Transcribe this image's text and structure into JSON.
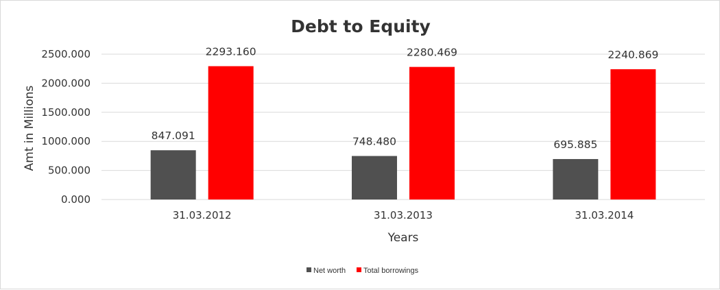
{
  "chart_data": {
    "type": "bar",
    "title": "Debt to Equity",
    "xlabel": "Years",
    "ylabel": "Amt in Millions",
    "categories": [
      "31.03.2012",
      "31.03.2013",
      "31.03.2014"
    ],
    "series": [
      {
        "name": "Net worth",
        "color": "#505050",
        "values": [
          847.091,
          748.48,
          695.885
        ],
        "labels": [
          "847.091",
          "748.480",
          "695.885"
        ]
      },
      {
        "name": "Total borrowings",
        "color": "#ff0000",
        "values": [
          2293.16,
          2280.469,
          2240.869
        ],
        "labels": [
          "2293.160",
          "2280.469",
          "2240.869"
        ]
      }
    ],
    "ylim": [
      0,
      2500
    ],
    "yticks": [
      "0.000",
      "500.000",
      "1000.000",
      "1500.000",
      "2000.000",
      "2500.000"
    ],
    "grid": true,
    "legend_position": "bottom"
  }
}
